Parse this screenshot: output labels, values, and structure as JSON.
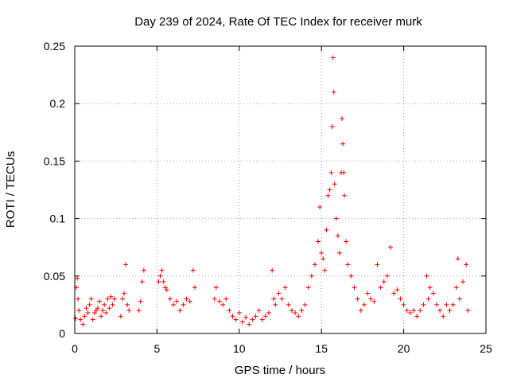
{
  "chart_data": {
    "type": "scatter",
    "title": "Day 239 of 2024, Rate Of TEC Index for receiver murk",
    "xlabel": "GPS time / hours",
    "ylabel": "ROTI / TECUs",
    "xlim": [
      0,
      25
    ],
    "ylim": [
      0,
      0.25
    ],
    "x_ticks": [
      "0",
      "5",
      "10",
      "15",
      "20",
      "25"
    ],
    "y_ticks": [
      "0",
      "0.05",
      "0.1",
      "0.15",
      "0.2",
      "0.25"
    ],
    "grid": true,
    "marker": "+",
    "color": "#ff0000",
    "series": [
      {
        "name": "ROTI",
        "points": [
          [
            0.05,
            0.013
          ],
          [
            0.1,
            0.04
          ],
          [
            0.15,
            0.048
          ],
          [
            0.2,
            0.03
          ],
          [
            0.25,
            0.02
          ],
          [
            0.35,
            0.012
          ],
          [
            0.5,
            0.008
          ],
          [
            0.6,
            0.015
          ],
          [
            0.7,
            0.022
          ],
          [
            0.8,
            0.018
          ],
          [
            0.9,
            0.025
          ],
          [
            1.0,
            0.03
          ],
          [
            1.1,
            0.012
          ],
          [
            1.2,
            0.018
          ],
          [
            1.3,
            0.02
          ],
          [
            1.4,
            0.022
          ],
          [
            1.5,
            0.028
          ],
          [
            1.6,
            0.015
          ],
          [
            1.7,
            0.02
          ],
          [
            1.8,
            0.025
          ],
          [
            1.9,
            0.018
          ],
          [
            2.0,
            0.03
          ],
          [
            2.1,
            0.022
          ],
          [
            2.2,
            0.032
          ],
          [
            2.3,
            0.025
          ],
          [
            2.4,
            0.03
          ],
          [
            2.8,
            0.015
          ],
          [
            2.9,
            0.03
          ],
          [
            3.0,
            0.035
          ],
          [
            3.1,
            0.06
          ],
          [
            3.2,
            0.025
          ],
          [
            3.3,
            0.02
          ],
          [
            3.9,
            0.02
          ],
          [
            4.0,
            0.028
          ],
          [
            4.1,
            0.045
          ],
          [
            4.2,
            0.055
          ],
          [
            5.1,
            0.045
          ],
          [
            5.2,
            0.05
          ],
          [
            5.3,
            0.055
          ],
          [
            5.4,
            0.045
          ],
          [
            5.5,
            0.04
          ],
          [
            5.6,
            0.038
          ],
          [
            5.8,
            0.03
          ],
          [
            6.0,
            0.025
          ],
          [
            6.2,
            0.028
          ],
          [
            6.4,
            0.02
          ],
          [
            6.6,
            0.025
          ],
          [
            6.8,
            0.03
          ],
          [
            7.0,
            0.028
          ],
          [
            7.2,
            0.055
          ],
          [
            7.3,
            0.04
          ],
          [
            8.5,
            0.03
          ],
          [
            8.6,
            0.04
          ],
          [
            8.8,
            0.028
          ],
          [
            9.0,
            0.025
          ],
          [
            9.2,
            0.03
          ],
          [
            9.4,
            0.02
          ],
          [
            9.6,
            0.015
          ],
          [
            9.8,
            0.012
          ],
          [
            10.0,
            0.018
          ],
          [
            10.2,
            0.01
          ],
          [
            10.4,
            0.014
          ],
          [
            10.6,
            0.008
          ],
          [
            10.8,
            0.012
          ],
          [
            11.0,
            0.015
          ],
          [
            11.2,
            0.02
          ],
          [
            11.4,
            0.012
          ],
          [
            11.6,
            0.015
          ],
          [
            11.8,
            0.018
          ],
          [
            12.0,
            0.055
          ],
          [
            12.1,
            0.03
          ],
          [
            12.2,
            0.025
          ],
          [
            12.4,
            0.035
          ],
          [
            12.6,
            0.03
          ],
          [
            12.8,
            0.04
          ],
          [
            13.0,
            0.025
          ],
          [
            13.2,
            0.02
          ],
          [
            13.4,
            0.018
          ],
          [
            13.6,
            0.015
          ],
          [
            13.8,
            0.02
          ],
          [
            14.0,
            0.025
          ],
          [
            14.2,
            0.04
          ],
          [
            14.4,
            0.05
          ],
          [
            14.6,
            0.06
          ],
          [
            14.8,
            0.08
          ],
          [
            14.9,
            0.11
          ],
          [
            15.0,
            0.07
          ],
          [
            15.1,
            0.065
          ],
          [
            15.2,
            0.055
          ],
          [
            15.3,
            0.09
          ],
          [
            15.4,
            0.12
          ],
          [
            15.5,
            0.125
          ],
          [
            15.6,
            0.14
          ],
          [
            15.65,
            0.18
          ],
          [
            15.7,
            0.24
          ],
          [
            15.75,
            0.21
          ],
          [
            15.8,
            0.13
          ],
          [
            15.9,
            0.1
          ],
          [
            16.0,
            0.085
          ],
          [
            16.1,
            0.07
          ],
          [
            16.2,
            0.14
          ],
          [
            16.25,
            0.187
          ],
          [
            16.3,
            0.165
          ],
          [
            16.35,
            0.14
          ],
          [
            16.4,
            0.12
          ],
          [
            16.5,
            0.08
          ],
          [
            16.6,
            0.06
          ],
          [
            16.8,
            0.05
          ],
          [
            17.0,
            0.04
          ],
          [
            17.2,
            0.03
          ],
          [
            17.4,
            0.02
          ],
          [
            17.6,
            0.025
          ],
          [
            17.8,
            0.035
          ],
          [
            18.0,
            0.03
          ],
          [
            18.2,
            0.028
          ],
          [
            18.4,
            0.06
          ],
          [
            18.6,
            0.04
          ],
          [
            18.8,
            0.045
          ],
          [
            19.0,
            0.05
          ],
          [
            19.2,
            0.075
          ],
          [
            19.4,
            0.035
          ],
          [
            19.6,
            0.038
          ],
          [
            19.8,
            0.03
          ],
          [
            20.0,
            0.025
          ],
          [
            20.2,
            0.02
          ],
          [
            20.4,
            0.018
          ],
          [
            20.6,
            0.02
          ],
          [
            20.8,
            0.015
          ],
          [
            21.0,
            0.02
          ],
          [
            21.2,
            0.025
          ],
          [
            21.4,
            0.05
          ],
          [
            21.5,
            0.03
          ],
          [
            21.6,
            0.04
          ],
          [
            21.8,
            0.035
          ],
          [
            22.0,
            0.025
          ],
          [
            22.2,
            0.02
          ],
          [
            22.4,
            0.015
          ],
          [
            22.6,
            0.025
          ],
          [
            22.8,
            0.02
          ],
          [
            23.0,
            0.025
          ],
          [
            23.2,
            0.04
          ],
          [
            23.3,
            0.065
          ],
          [
            23.4,
            0.03
          ],
          [
            23.6,
            0.045
          ],
          [
            23.8,
            0.06
          ],
          [
            23.9,
            0.02
          ]
        ]
      }
    ]
  }
}
